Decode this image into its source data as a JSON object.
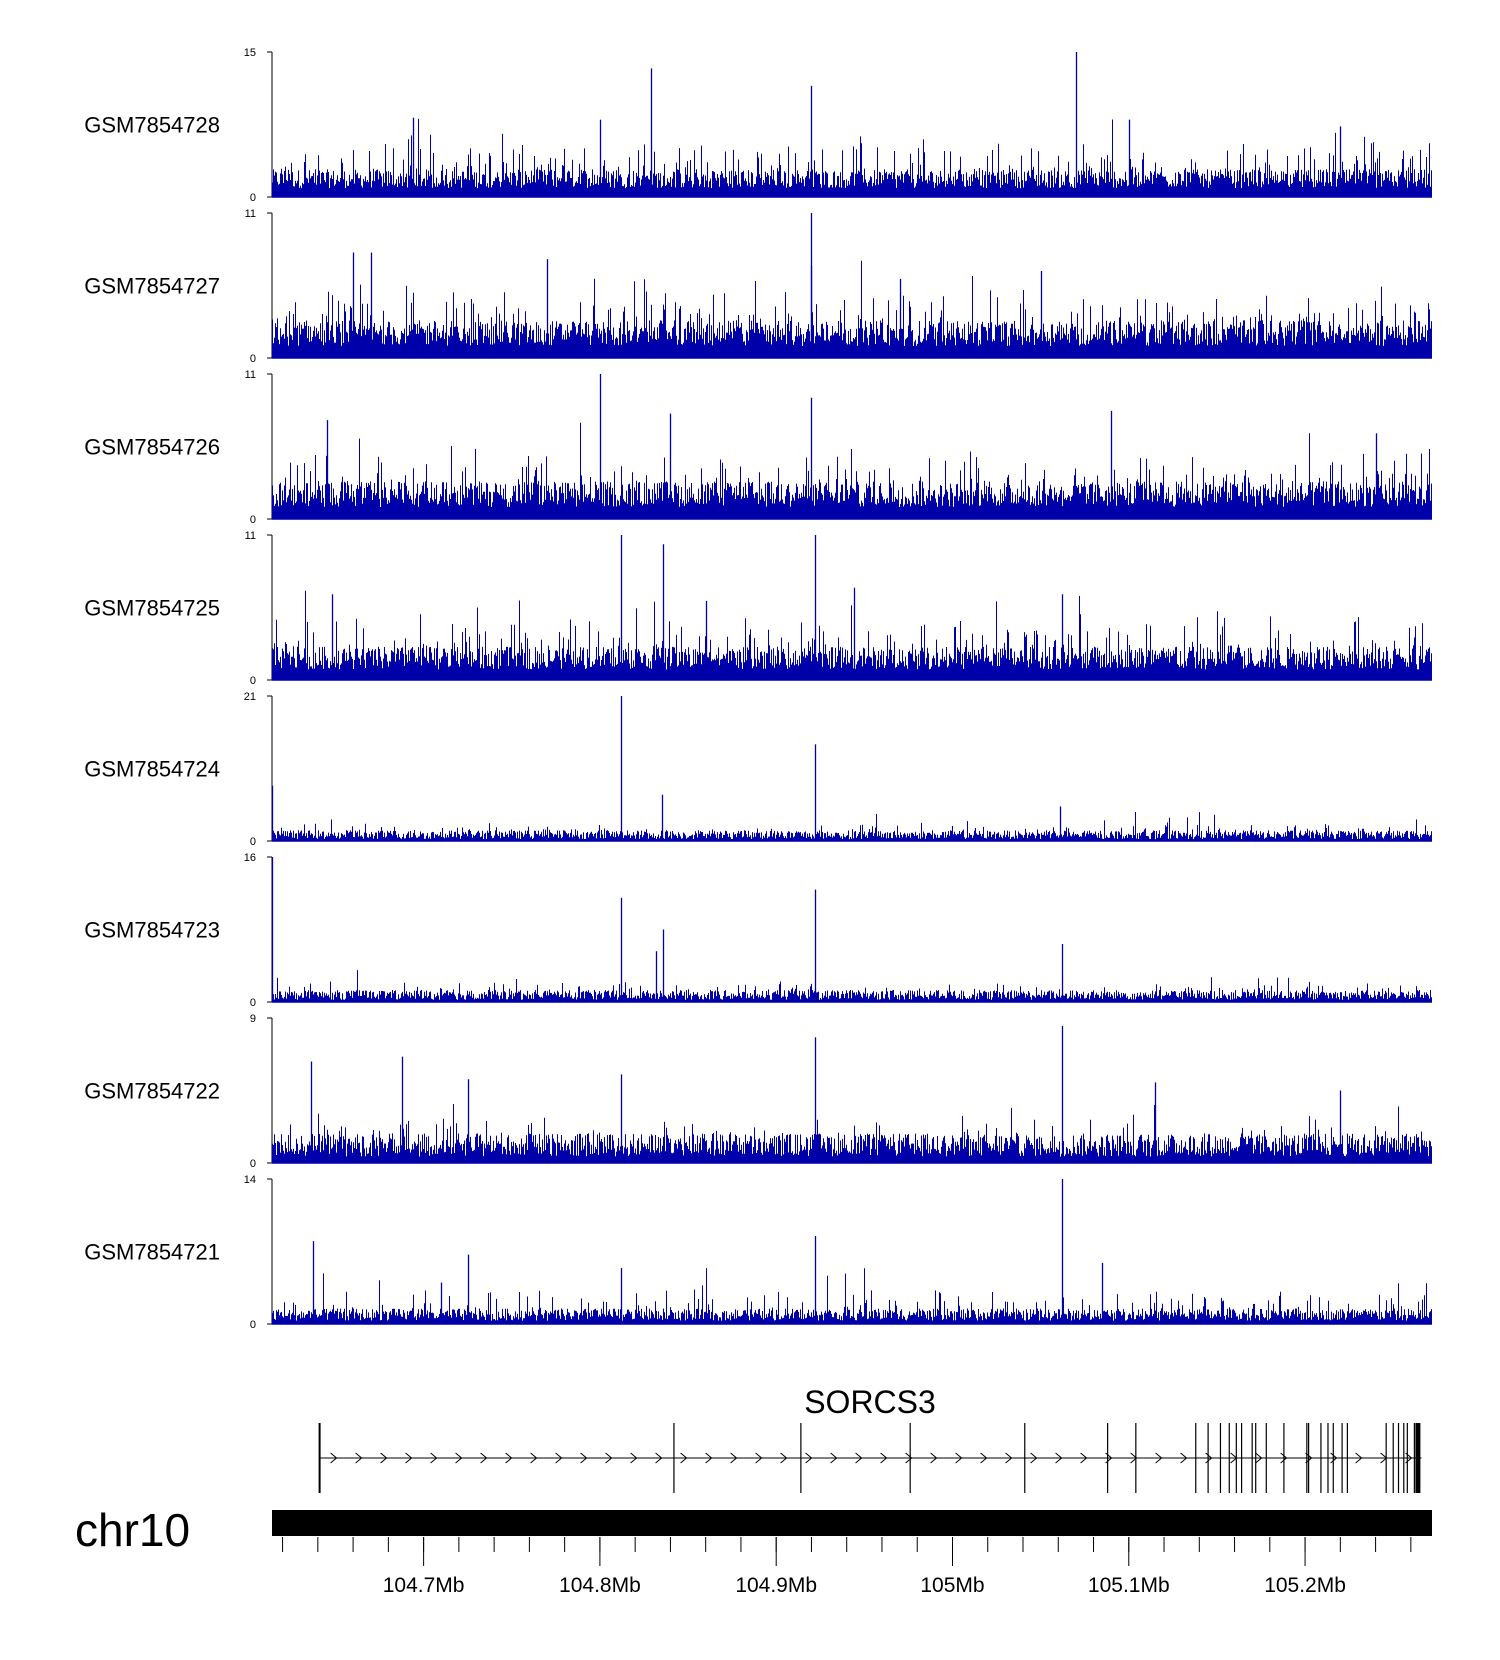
{
  "chart_data": {
    "type": "genome-browser-coverage",
    "chromosome": "chr10",
    "region": {
      "start_mb": 104.614,
      "end_mb": 105.272
    },
    "bar_color": "#0000aa",
    "tracks": [
      {
        "name": "GSM7854728",
        "ymax": 15,
        "ymin": 0,
        "style": "dense",
        "baseline": 2.6,
        "peaks": [
          [
            104.829,
            13.3
          ],
          [
            104.92,
            11.5
          ],
          [
            105.07,
            15
          ],
          [
            104.8,
            8.0
          ],
          [
            104.694,
            8.2
          ],
          [
            105.1,
            8.0
          ],
          [
            105.22,
            7.3
          ]
        ]
      },
      {
        "name": "GSM7854727",
        "ymax": 11,
        "ymin": 0,
        "style": "dense",
        "baseline": 2.6,
        "peaks": [
          [
            104.92,
            11
          ],
          [
            104.66,
            8.0
          ],
          [
            104.67,
            8.0
          ],
          [
            104.77,
            7.5
          ],
          [
            104.92,
            7.0
          ],
          [
            104.97,
            6.0
          ],
          [
            105.05,
            6.6
          ]
        ]
      },
      {
        "name": "GSM7854726",
        "ymax": 11,
        "ymin": 0,
        "style": "dense",
        "baseline": 2.6,
        "peaks": [
          [
            104.8,
            11
          ],
          [
            104.84,
            8.0
          ],
          [
            104.92,
            9.2
          ],
          [
            105.09,
            8.2
          ],
          [
            104.645,
            7.5
          ],
          [
            105.24,
            6.5
          ]
        ]
      },
      {
        "name": "GSM7854725",
        "ymax": 11,
        "ymin": 0,
        "style": "dense",
        "baseline": 2.3,
        "peaks": [
          [
            104.812,
            11
          ],
          [
            104.836,
            10.3
          ],
          [
            104.922,
            11
          ],
          [
            104.648,
            6.5
          ],
          [
            104.944,
            7.0
          ],
          [
            105.062,
            6.5
          ],
          [
            104.86,
            6.0
          ]
        ]
      },
      {
        "name": "GSM7854724",
        "ymax": 21,
        "ymin": 0,
        "style": "sparse",
        "baseline": 1.4,
        "peaks": [
          [
            104.812,
            21
          ],
          [
            104.922,
            14
          ],
          [
            104.835,
            6.7
          ],
          [
            104.614,
            8.0
          ],
          [
            105.061,
            5.0
          ]
        ]
      },
      {
        "name": "GSM7854723",
        "ymax": 16,
        "ymin": 0,
        "style": "sparse",
        "baseline": 1.2,
        "peaks": [
          [
            104.812,
            11.5
          ],
          [
            104.922,
            12.4
          ],
          [
            104.836,
            8.0
          ],
          [
            104.614,
            16
          ],
          [
            105.062,
            6.4
          ],
          [
            104.832,
            5.6
          ]
        ]
      },
      {
        "name": "GSM7854722",
        "ymax": 9,
        "ymin": 0,
        "style": "medium",
        "baseline": 1.6,
        "peaks": [
          [
            105.062,
            8.5
          ],
          [
            104.922,
            7.8
          ],
          [
            104.688,
            6.6
          ],
          [
            104.636,
            6.3
          ],
          [
            104.812,
            5.5
          ],
          [
            104.725,
            5.2
          ],
          [
            105.115,
            5.0
          ],
          [
            105.22,
            4.5
          ]
        ]
      },
      {
        "name": "GSM7854721",
        "ymax": 14,
        "ymin": 0,
        "style": "medium",
        "baseline": 1.3,
        "peaks": [
          [
            105.062,
            14
          ],
          [
            104.922,
            8.5
          ],
          [
            104.637,
            8.0
          ],
          [
            104.725,
            6.7
          ],
          [
            104.812,
            5.4
          ],
          [
            105.085,
            5.9
          ],
          [
            104.71,
            4.0
          ]
        ]
      }
    ],
    "gene": {
      "name": "SORCS3",
      "strand": "+",
      "start_mb": 104.641,
      "end_mb": 105.266,
      "exons_mb": [
        104.641,
        104.842,
        104.914,
        104.976,
        105.041,
        105.088,
        105.104,
        105.138,
        105.145,
        105.152,
        105.157,
        105.161,
        105.164,
        105.17,
        105.172,
        105.178,
        105.188,
        105.201,
        105.202,
        105.209,
        105.213,
        105.216,
        105.221,
        105.224,
        105.246,
        105.25,
        105.253,
        105.256,
        105.258,
        105.262,
        105.264
      ]
    },
    "xaxis": {
      "major_ticks_mb": [
        104.7,
        104.8,
        104.9,
        105.0,
        105.1,
        105.2
      ],
      "tick_labels": [
        "104.7Mb",
        "104.8Mb",
        "104.9Mb",
        "105Mb",
        "105.1Mb",
        "105.2Mb"
      ],
      "minor_tick_step_mb": 0.02
    }
  }
}
